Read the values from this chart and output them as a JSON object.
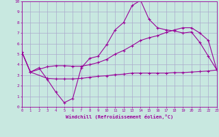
{
  "xlabel": "Windchill (Refroidissement éolien,°C)",
  "xlim": [
    0,
    23
  ],
  "ylim": [
    0,
    10
  ],
  "xticks": [
    0,
    1,
    2,
    3,
    4,
    5,
    6,
    7,
    8,
    9,
    10,
    11,
    12,
    13,
    14,
    15,
    16,
    17,
    18,
    19,
    20,
    21,
    22,
    23
  ],
  "yticks": [
    0,
    1,
    2,
    3,
    4,
    5,
    6,
    7,
    8,
    9,
    10
  ],
  "bg_color": "#c8e8e0",
  "line_color": "#990099",
  "grid_color": "#aaaacc",
  "curve1_x": [
    0,
    1,
    2,
    3,
    4,
    5,
    6,
    7,
    8,
    9,
    10,
    11,
    12,
    13,
    14,
    15,
    16,
    17,
    18,
    19,
    20,
    21,
    22,
    23
  ],
  "curve1_y": [
    5.2,
    3.3,
    3.7,
    2.6,
    1.4,
    0.4,
    0.8,
    3.7,
    4.6,
    4.8,
    5.9,
    7.3,
    8.0,
    9.6,
    10.1,
    8.3,
    7.5,
    7.3,
    7.2,
    7.0,
    7.1,
    6.1,
    4.8,
    3.5
  ],
  "curve2_x": [
    0,
    1,
    3,
    4,
    5,
    6,
    7,
    8,
    9,
    10,
    11,
    12,
    13,
    14,
    15,
    16,
    17,
    18,
    19,
    20,
    21,
    22,
    23
  ],
  "curve2_y": [
    5.2,
    3.3,
    3.8,
    3.9,
    3.9,
    3.85,
    3.85,
    4.0,
    4.2,
    4.5,
    5.0,
    5.35,
    5.8,
    6.3,
    6.55,
    6.75,
    7.05,
    7.3,
    7.5,
    7.5,
    7.0,
    6.3,
    3.5
  ],
  "curve3_x": [
    0,
    1,
    3,
    4,
    5,
    6,
    7,
    8,
    9,
    10,
    11,
    12,
    13,
    14,
    15,
    16,
    17,
    18,
    19,
    20,
    21,
    22,
    23
  ],
  "curve3_y": [
    5.2,
    3.3,
    2.7,
    2.65,
    2.65,
    2.65,
    2.7,
    2.8,
    2.9,
    2.95,
    3.05,
    3.1,
    3.2,
    3.2,
    3.2,
    3.2,
    3.2,
    3.25,
    3.25,
    3.3,
    3.35,
    3.4,
    3.5
  ]
}
